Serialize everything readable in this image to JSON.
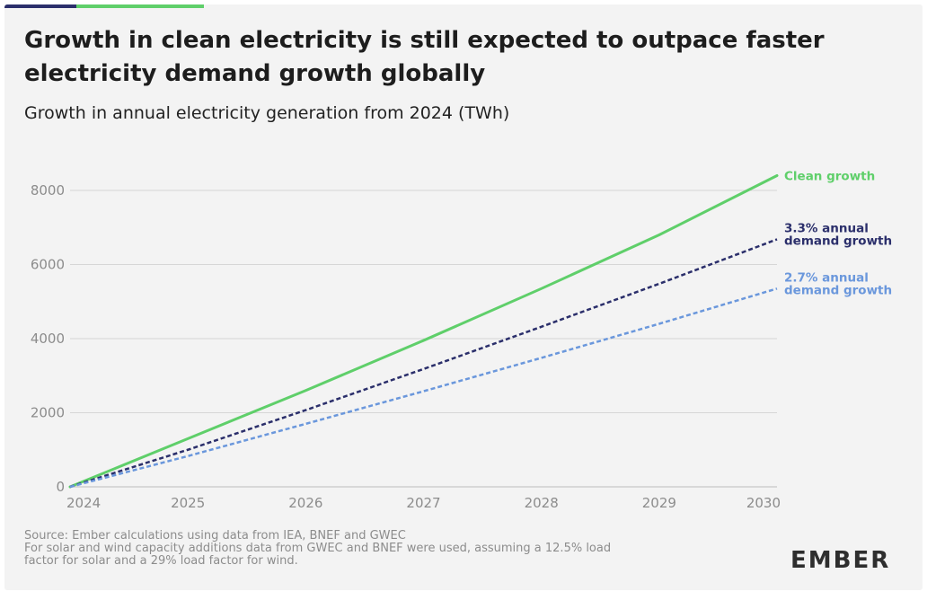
{
  "header": {
    "title": "Growth in clean electricity is still expected to outpace faster electricity demand growth globally",
    "subtitle": "Growth in annual electricity generation from 2024 (TWh)"
  },
  "chart_data": {
    "type": "line",
    "x": [
      2024,
      2025,
      2026,
      2027,
      2028,
      2029,
      2030
    ],
    "xlim": [
      2024,
      2030
    ],
    "ylim": [
      0,
      8000
    ],
    "yticks": [
      0,
      2000,
      4000,
      6000,
      8000
    ],
    "grid": true,
    "legend": "inline at line ends",
    "series": [
      {
        "name": "Clean growth",
        "label_lines": [
          "Clean growth"
        ],
        "values": [
          0,
          1300,
          2600,
          3950,
          5350,
          6800,
          8400
        ],
        "color": "#5fcf6a",
        "dashed": false
      },
      {
        "name": "3.3% annual demand growth",
        "label_lines": [
          "3.3% annual",
          "demand growth"
        ],
        "values": [
          0,
          1000,
          2070,
          3180,
          4320,
          5480,
          6680
        ],
        "color": "#2b2f6b",
        "dashed": true
      },
      {
        "name": "2.7% annual demand growth",
        "label_lines": [
          "2.7% annual",
          "demand growth"
        ],
        "values": [
          0,
          830,
          1700,
          2580,
          3480,
          4400,
          5350
        ],
        "color": "#6a97dc",
        "dashed": true
      }
    ]
  },
  "footer": {
    "source": "Source: Ember calculations using data from IEA, BNEF and GWEC",
    "note_line1": "For solar and wind capacity additions data from GWEC and BNEF were used, assuming a 12.5% load",
    "note_line2": "factor for solar and a 29% load factor for wind."
  },
  "logo": {
    "text": "EMBER"
  },
  "colors": {
    "background": "#f3f3f3",
    "grid": "#d6d6d6",
    "axis_text": "#8c8c8c",
    "accent_dark": "#2b2f6b",
    "accent_green": "#5fcf6a"
  }
}
